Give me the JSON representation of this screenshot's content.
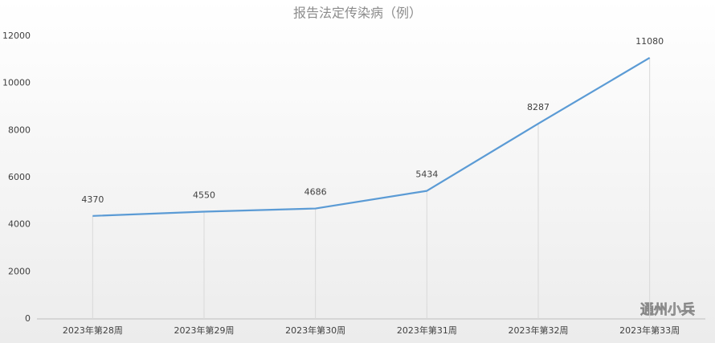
{
  "chart_data": {
    "type": "line",
    "title": "报告法定传染病（例）",
    "categories": [
      "2023年第28周",
      "2023年第29周",
      "2023年第30周",
      "2023年第31周",
      "2023年第32周",
      "2023年第33周"
    ],
    "values": [
      4370,
      4550,
      4686,
      5434,
      8287,
      11080
    ],
    "color": "#5b9bd5",
    "ylim": [
      0,
      12000
    ],
    "yticks": [
      0,
      2000,
      4000,
      6000,
      8000,
      10000,
      12000
    ],
    "drop_lines": true,
    "watermark": "通州小兵"
  }
}
